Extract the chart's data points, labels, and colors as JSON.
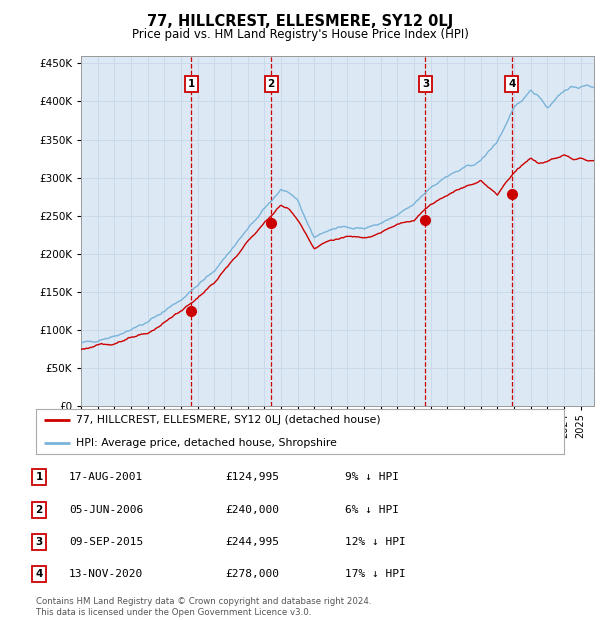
{
  "title": "77, HILLCREST, ELLESMERE, SY12 0LJ",
  "subtitle": "Price paid vs. HM Land Registry's House Price Index (HPI)",
  "ylim": [
    0,
    460000
  ],
  "yticks": [
    0,
    50000,
    100000,
    150000,
    200000,
    250000,
    300000,
    350000,
    400000,
    450000
  ],
  "xlim_start": 1995.0,
  "xlim_end": 2025.8,
  "plot_bg_color": "#dce9f5",
  "grid_color": "#c8d8e8",
  "hpi_color": "#7ab3d9",
  "price_color": "#cc0000",
  "vline_sale_color": "#cc0000",
  "sale_points": [
    {
      "year": 2001.63,
      "price": 124995,
      "label": "1"
    },
    {
      "year": 2006.42,
      "price": 240000,
      "label": "2"
    },
    {
      "year": 2015.68,
      "price": 244995,
      "label": "3"
    },
    {
      "year": 2020.87,
      "price": 278000,
      "label": "4"
    }
  ],
  "sale_dates": [
    "17-AUG-2001",
    "05-JUN-2006",
    "09-SEP-2015",
    "13-NOV-2020"
  ],
  "sale_prices_str": [
    "£124,995",
    "£240,000",
    "£244,995",
    "£278,000"
  ],
  "sale_hpi_str": [
    "9% ↓ HPI",
    "6% ↓ HPI",
    "12% ↓ HPI",
    "17% ↓ HPI"
  ],
  "legend_line1": "77, HILLCREST, ELLESMERE, SY12 0LJ (detached house)",
  "legend_line2": "HPI: Average price, detached house, Shropshire",
  "footnote": "Contains HM Land Registry data © Crown copyright and database right 2024.\nThis data is licensed under the Open Government Licence v3.0."
}
